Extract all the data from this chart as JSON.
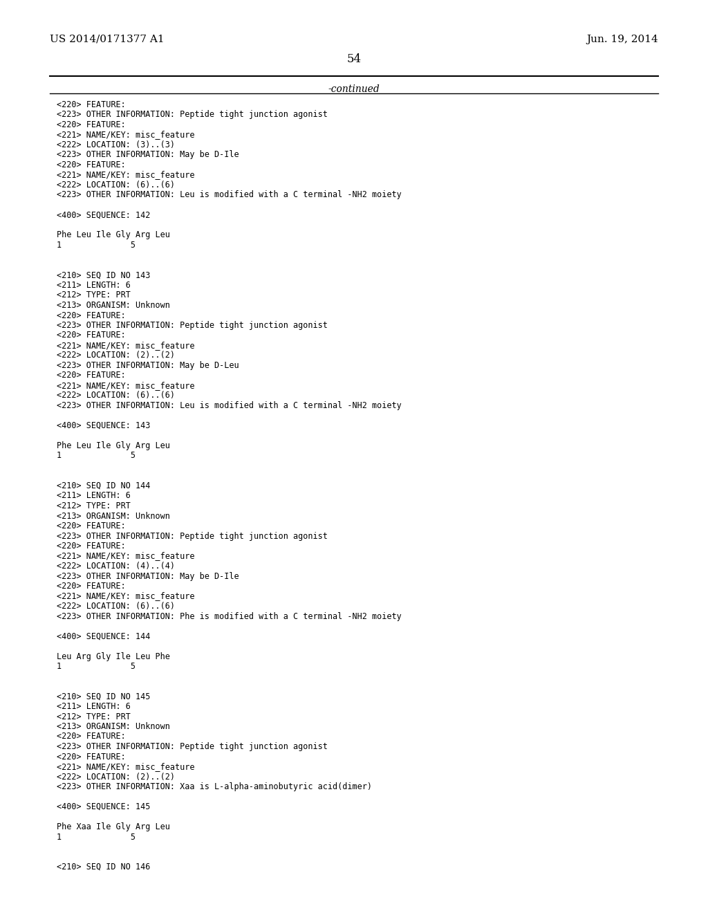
{
  "header_left": "US 2014/0171377 A1",
  "header_right": "Jun. 19, 2014",
  "page_number": "54",
  "continued_label": "-continued",
  "background_color": "#ffffff",
  "text_color": "#000000",
  "body_lines": [
    "<220> FEATURE:",
    "<223> OTHER INFORMATION: Peptide tight junction agonist",
    "<220> FEATURE:",
    "<221> NAME/KEY: misc_feature",
    "<222> LOCATION: (3)..(3)",
    "<223> OTHER INFORMATION: May be D-Ile",
    "<220> FEATURE:",
    "<221> NAME/KEY: misc_feature",
    "<222> LOCATION: (6)..(6)",
    "<223> OTHER INFORMATION: Leu is modified with a C terminal -NH2 moiety",
    "",
    "<400> SEQUENCE: 142",
    "",
    "Phe Leu Ile Gly Arg Leu",
    "1              5",
    "",
    "",
    "<210> SEQ ID NO 143",
    "<211> LENGTH: 6",
    "<212> TYPE: PRT",
    "<213> ORGANISM: Unknown",
    "<220> FEATURE:",
    "<223> OTHER INFORMATION: Peptide tight junction agonist",
    "<220> FEATURE:",
    "<221> NAME/KEY: misc_feature",
    "<222> LOCATION: (2)..(2)",
    "<223> OTHER INFORMATION: May be D-Leu",
    "<220> FEATURE:",
    "<221> NAME/KEY: misc_feature",
    "<222> LOCATION: (6)..(6)",
    "<223> OTHER INFORMATION: Leu is modified with a C terminal -NH2 moiety",
    "",
    "<400> SEQUENCE: 143",
    "",
    "Phe Leu Ile Gly Arg Leu",
    "1              5",
    "",
    "",
    "<210> SEQ ID NO 144",
    "<211> LENGTH: 6",
    "<212> TYPE: PRT",
    "<213> ORGANISM: Unknown",
    "<220> FEATURE:",
    "<223> OTHER INFORMATION: Peptide tight junction agonist",
    "<220> FEATURE:",
    "<221> NAME/KEY: misc_feature",
    "<222> LOCATION: (4)..(4)",
    "<223> OTHER INFORMATION: May be D-Ile",
    "<220> FEATURE:",
    "<221> NAME/KEY: misc_feature",
    "<222> LOCATION: (6)..(6)",
    "<223> OTHER INFORMATION: Phe is modified with a C terminal -NH2 moiety",
    "",
    "<400> SEQUENCE: 144",
    "",
    "Leu Arg Gly Ile Leu Phe",
    "1              5",
    "",
    "",
    "<210> SEQ ID NO 145",
    "<211> LENGTH: 6",
    "<212> TYPE: PRT",
    "<213> ORGANISM: Unknown",
    "<220> FEATURE:",
    "<223> OTHER INFORMATION: Peptide tight junction agonist",
    "<220> FEATURE:",
    "<221> NAME/KEY: misc_feature",
    "<222> LOCATION: (2)..(2)",
    "<223> OTHER INFORMATION: Xaa is L-alpha-aminobutyric acid(dimer)",
    "",
    "<400> SEQUENCE: 145",
    "",
    "Phe Xaa Ile Gly Arg Leu",
    "1              5",
    "",
    "",
    "<210> SEQ ID NO 146"
  ]
}
